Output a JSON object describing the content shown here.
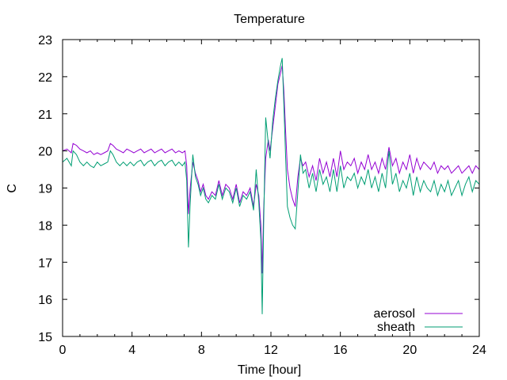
{
  "chart_data": {
    "type": "line",
    "title": "Temperature",
    "xlabel": "Time [hour]",
    "ylabel": "C",
    "xlim": [
      0,
      24
    ],
    "ylim": [
      15,
      23
    ],
    "xticks": [
      0,
      4,
      8,
      12,
      16,
      20,
      24
    ],
    "yticks": [
      15,
      16,
      17,
      18,
      19,
      20,
      21,
      22,
      23
    ],
    "grid": false,
    "legend_position": "bottom-right",
    "series": [
      {
        "name": "aerosol",
        "color": "#9400d3",
        "x": [
          0,
          0.25,
          0.5,
          0.6,
          0.8,
          1.0,
          1.2,
          1.4,
          1.6,
          1.8,
          2.0,
          2.2,
          2.4,
          2.6,
          2.75,
          2.9,
          3.1,
          3.3,
          3.5,
          3.7,
          3.9,
          4.1,
          4.3,
          4.5,
          4.7,
          4.9,
          5.1,
          5.3,
          5.5,
          5.7,
          5.9,
          6.1,
          6.3,
          6.5,
          6.7,
          6.9,
          7.05,
          7.15,
          7.25,
          7.35,
          7.5,
          7.65,
          7.8,
          7.95,
          8.1,
          8.25,
          8.4,
          8.6,
          8.8,
          9.0,
          9.2,
          9.4,
          9.6,
          9.8,
          10.0,
          10.2,
          10.4,
          10.6,
          10.8,
          11.0,
          11.15,
          11.3,
          11.42,
          11.5,
          11.58,
          11.7,
          11.85,
          11.95,
          12.1,
          12.25,
          12.4,
          12.55,
          12.65,
          12.75,
          12.85,
          12.95,
          13.1,
          13.25,
          13.4,
          13.55,
          13.7,
          13.85,
          14.0,
          14.2,
          14.4,
          14.6,
          14.8,
          15.0,
          15.2,
          15.4,
          15.6,
          15.8,
          16.0,
          16.2,
          16.4,
          16.6,
          16.8,
          17.0,
          17.2,
          17.4,
          17.6,
          17.8,
          18.0,
          18.2,
          18.4,
          18.6,
          18.8,
          19.0,
          19.2,
          19.4,
          19.6,
          19.8,
          20.0,
          20.2,
          20.4,
          20.6,
          20.8,
          21.0,
          21.2,
          21.4,
          21.6,
          21.8,
          22.0,
          22.2,
          22.4,
          22.6,
          22.8,
          23.0,
          23.2,
          23.4,
          23.6,
          23.8,
          24.0
        ],
        "values": [
          20.0,
          20.05,
          19.95,
          20.2,
          20.15,
          20.05,
          20.0,
          19.95,
          20.0,
          19.9,
          19.95,
          19.9,
          19.95,
          20.0,
          20.2,
          20.15,
          20.05,
          20.0,
          19.95,
          20.05,
          20.0,
          19.95,
          20.0,
          20.05,
          19.95,
          20.0,
          20.05,
          19.95,
          20.0,
          20.05,
          19.95,
          20.0,
          20.05,
          19.95,
          20.0,
          19.95,
          20.0,
          19.6,
          18.3,
          19.0,
          19.7,
          19.4,
          19.2,
          18.9,
          19.1,
          18.8,
          18.7,
          18.9,
          18.8,
          19.2,
          18.8,
          19.1,
          19.0,
          18.7,
          19.1,
          18.6,
          18.9,
          18.8,
          19.0,
          18.5,
          19.1,
          18.8,
          18.0,
          16.7,
          18.4,
          19.8,
          20.3,
          20.0,
          20.6,
          21.2,
          21.8,
          22.1,
          22.3,
          21.6,
          20.5,
          19.5,
          19.0,
          18.7,
          18.5,
          19.3,
          19.8,
          19.6,
          19.7,
          19.3,
          19.6,
          19.2,
          19.8,
          19.4,
          19.7,
          19.3,
          19.8,
          19.3,
          20.0,
          19.5,
          19.7,
          19.6,
          19.8,
          19.4,
          19.7,
          19.5,
          19.9,
          19.5,
          19.7,
          19.4,
          19.8,
          19.5,
          20.1,
          19.6,
          19.8,
          19.4,
          19.7,
          19.5,
          19.9,
          19.4,
          19.8,
          19.5,
          19.7,
          19.6,
          19.5,
          19.7,
          19.4,
          19.6,
          19.5,
          19.6,
          19.4,
          19.5,
          19.6,
          19.4,
          19.5,
          19.6,
          19.4,
          19.6,
          19.5
        ]
      },
      {
        "name": "sheath",
        "color": "#009e73",
        "x": [
          0,
          0.25,
          0.5,
          0.6,
          0.8,
          1.0,
          1.2,
          1.4,
          1.6,
          1.8,
          2.0,
          2.2,
          2.4,
          2.6,
          2.75,
          2.9,
          3.1,
          3.3,
          3.5,
          3.7,
          3.9,
          4.1,
          4.3,
          4.5,
          4.7,
          4.9,
          5.1,
          5.3,
          5.5,
          5.7,
          5.9,
          6.1,
          6.3,
          6.5,
          6.7,
          6.9,
          7.05,
          7.15,
          7.25,
          7.35,
          7.5,
          7.65,
          7.8,
          7.95,
          8.1,
          8.25,
          8.4,
          8.6,
          8.8,
          9.0,
          9.2,
          9.4,
          9.6,
          9.8,
          10.0,
          10.2,
          10.4,
          10.6,
          10.8,
          11.0,
          11.15,
          11.3,
          11.42,
          11.5,
          11.58,
          11.7,
          11.85,
          11.95,
          12.1,
          12.25,
          12.4,
          12.55,
          12.65,
          12.75,
          12.85,
          12.95,
          13.1,
          13.25,
          13.4,
          13.55,
          13.7,
          13.85,
          14.0,
          14.2,
          14.4,
          14.6,
          14.8,
          15.0,
          15.2,
          15.4,
          15.6,
          15.8,
          16.0,
          16.2,
          16.4,
          16.6,
          16.8,
          17.0,
          17.2,
          17.4,
          17.6,
          17.8,
          18.0,
          18.2,
          18.4,
          18.6,
          18.8,
          19.0,
          19.2,
          19.4,
          19.6,
          19.8,
          20.0,
          20.2,
          20.4,
          20.6,
          20.8,
          21.0,
          21.2,
          21.4,
          21.6,
          21.8,
          22.0,
          22.2,
          22.4,
          22.6,
          22.8,
          23.0,
          23.2,
          23.4,
          23.6,
          23.8,
          24.0
        ],
        "values": [
          19.7,
          19.8,
          19.6,
          20.0,
          19.9,
          19.7,
          19.6,
          19.7,
          19.6,
          19.55,
          19.7,
          19.6,
          19.65,
          19.7,
          20.0,
          19.9,
          19.7,
          19.6,
          19.7,
          19.6,
          19.7,
          19.6,
          19.7,
          19.75,
          19.6,
          19.7,
          19.75,
          19.6,
          19.7,
          19.75,
          19.6,
          19.7,
          19.75,
          19.6,
          19.7,
          19.6,
          19.7,
          19.2,
          17.4,
          18.6,
          19.9,
          19.3,
          19.1,
          18.8,
          19.0,
          18.7,
          18.6,
          18.8,
          18.7,
          19.1,
          18.7,
          19.0,
          18.9,
          18.6,
          19.0,
          18.5,
          18.8,
          18.7,
          18.9,
          18.4,
          19.5,
          18.6,
          17.6,
          15.6,
          18.0,
          20.9,
          20.2,
          19.8,
          20.8,
          21.4,
          21.9,
          22.3,
          22.5,
          21.2,
          19.8,
          18.5,
          18.2,
          18.0,
          17.9,
          18.9,
          19.9,
          19.4,
          19.5,
          19.0,
          19.4,
          18.9,
          19.5,
          19.1,
          19.3,
          18.9,
          19.5,
          18.9,
          19.6,
          19.0,
          19.3,
          19.2,
          19.4,
          19.0,
          19.3,
          19.1,
          19.5,
          19.0,
          19.3,
          18.9,
          19.4,
          19.0,
          20.0,
          19.1,
          19.4,
          18.9,
          19.2,
          19.0,
          19.4,
          18.8,
          19.3,
          18.9,
          19.2,
          19.0,
          18.9,
          19.2,
          18.8,
          19.1,
          18.9,
          19.2,
          18.8,
          19.0,
          19.2,
          18.8,
          19.1,
          19.3,
          18.9,
          19.2,
          19.1
        ]
      }
    ]
  }
}
